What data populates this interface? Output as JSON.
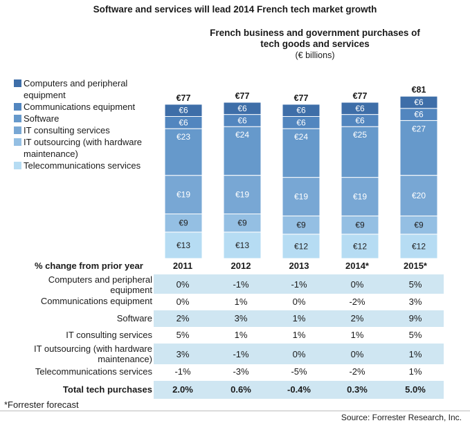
{
  "title": "Software and services will lead 2014 French tech market growth",
  "subtitle_line1": "French business and government purchases of",
  "subtitle_line2": "tech goods and services",
  "subtitle_units": "(€ billions)",
  "colors": {
    "computers": "#3e6ea8",
    "communications": "#5286bf",
    "software": "#6699cb",
    "it_consulting": "#78a7d4",
    "it_outsourcing": "#94bfe3",
    "telecom": "#b6dcf3",
    "table_shade": "#cfe6f2"
  },
  "legend": [
    {
      "label": "Computers and peripheral equipment",
      "line1": "Computers and peripheral",
      "line2": "equipment"
    },
    {
      "label": "Communications equipment",
      "line1": "Communications equipment",
      "line2": ""
    },
    {
      "label": "Software",
      "line1": "Software",
      "line2": ""
    },
    {
      "label": "IT consulting services",
      "line1": "IT consulting services",
      "line2": ""
    },
    {
      "label": "IT outsourcing (with hardware maintenance)",
      "line1": "IT outsourcing (with hardware",
      "line2": "maintenance)"
    },
    {
      "label": "Telecommunications services",
      "line1": "Telecommunications services",
      "line2": ""
    }
  ],
  "chart_data": {
    "type": "bar",
    "stacked": true,
    "categories": [
      "2011",
      "2012",
      "2013",
      "2014*",
      "2015*"
    ],
    "totals": [
      "€77",
      "€77",
      "€77",
      "€77",
      "€81"
    ],
    "total_values": [
      77,
      77,
      77,
      77,
      81
    ],
    "series": [
      {
        "name": "Telecommunications services",
        "values": [
          13,
          13,
          12,
          12,
          12
        ],
        "labels": [
          "€13",
          "€13",
          "€12",
          "€12",
          "€12"
        ]
      },
      {
        "name": "IT outsourcing (with hardware maintenance)",
        "values": [
          9,
          9,
          9,
          9,
          9
        ],
        "labels": [
          "€9",
          "€9",
          "€9",
          "€9",
          "€9"
        ]
      },
      {
        "name": "IT consulting services",
        "values": [
          19,
          19,
          19,
          19,
          20
        ],
        "labels": [
          "€19",
          "€19",
          "€19",
          "€19",
          "€20"
        ]
      },
      {
        "name": "Software",
        "values": [
          23,
          24,
          24,
          25,
          27
        ],
        "labels": [
          "€23",
          "€24",
          "€24",
          "€25",
          "€27"
        ]
      },
      {
        "name": "Communications equipment",
        "values": [
          6,
          6,
          6,
          6,
          6
        ],
        "labels": [
          "€6",
          "€6",
          "€6",
          "€6",
          "€6"
        ]
      },
      {
        "name": "Computers and peripheral equipment",
        "values": [
          6,
          6,
          6,
          6,
          6
        ],
        "labels": [
          "€6",
          "€6",
          "€6",
          "€6",
          "€6"
        ]
      }
    ],
    "ylim": [
      0,
      81
    ]
  },
  "table": {
    "header_label": "% change from prior year",
    "years": [
      "2011",
      "2012",
      "2013",
      "2014*",
      "2015*"
    ],
    "rows": [
      {
        "line1": "Computers and peripheral",
        "line2": "equipment",
        "values": [
          "0%",
          "-1%",
          "-1%",
          "0%",
          "5%"
        ]
      },
      {
        "line1": "Communications equipment",
        "line2": "",
        "values": [
          "0%",
          "1%",
          "0%",
          "-2%",
          "3%"
        ]
      },
      {
        "line1": "Software",
        "line2": "",
        "values": [
          "2%",
          "3%",
          "1%",
          "2%",
          "9%"
        ]
      },
      {
        "line1": "IT consulting services",
        "line2": "",
        "values": [
          "5%",
          "1%",
          "1%",
          "1%",
          "5%"
        ]
      },
      {
        "line1": "IT outsourcing (with hardware",
        "line2": "maintenance)",
        "values": [
          "3%",
          "-1%",
          "0%",
          "0%",
          "1%"
        ]
      },
      {
        "line1": "Telecommunications services",
        "line2": "",
        "values": [
          "-1%",
          "-3%",
          "-5%",
          "-2%",
          "1%"
        ]
      }
    ],
    "total_label": "Total tech purchases",
    "total_values": [
      "2.0%",
      "0.6%",
      "-0.4%",
      "0.3%",
      "5.0%"
    ]
  },
  "footnote": "*Forrester forecast",
  "source": "Source: Forrester Research, Inc."
}
